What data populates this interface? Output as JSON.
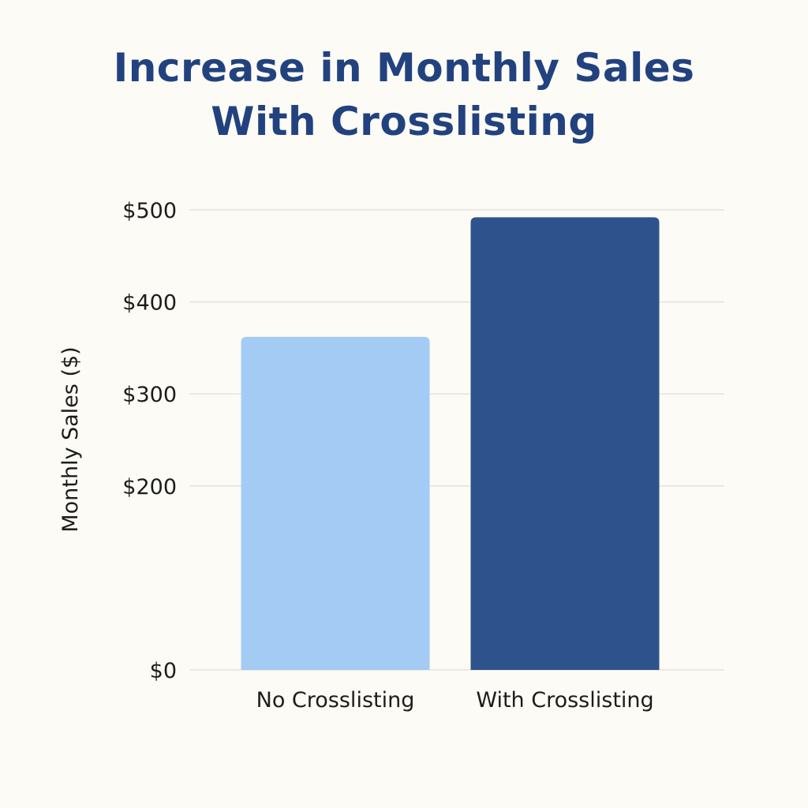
{
  "chart_data": {
    "type": "bar",
    "title_lines": [
      "Increase in Monthly Sales",
      "With Crosslisting"
    ],
    "xlabel": "",
    "ylabel": "Monthly Sales ($)",
    "categories": [
      "No Crosslisting",
      "With Crosslisting"
    ],
    "values": [
      362,
      492
    ],
    "bar_colors": [
      "#a3cbf4",
      "#2e528c"
    ],
    "ylim": [
      0,
      500
    ],
    "yticks": [
      0,
      200,
      300,
      400,
      500
    ],
    "ytick_labels": [
      "$0",
      "$200",
      "$300",
      "$400",
      "$500"
    ],
    "grid": true,
    "legend": "none"
  }
}
